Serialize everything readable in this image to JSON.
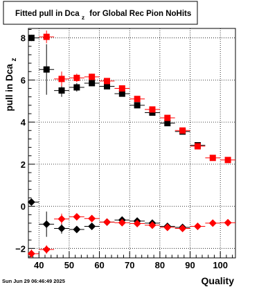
{
  "chart_data": {
    "type": "scatter",
    "title": "Fitted pull in Dca",
    "title_subscript": "z",
    "title_suffix": "for Global Rec Pion NoHits",
    "xlabel": "Quality",
    "ylabel": "pull in Dca",
    "ylabel_subscript": "z",
    "timestamp": "Sun Jun 29 06:46:49 2025",
    "xlim": [
      36.5,
      105
    ],
    "ylim": [
      -2.45,
      8.45
    ],
    "x_ticks": [
      40,
      50,
      60,
      70,
      80,
      90,
      100
    ],
    "y_ticks": [
      -2,
      0,
      2,
      4,
      6,
      8
    ],
    "grid": true,
    "series": [
      {
        "color": "#000000",
        "marker": "square",
        "points": [
          {
            "x": 37.5,
            "y": 8.0,
            "xerr": 2.5,
            "yerr": 0.15
          },
          {
            "x": 42.5,
            "y": 6.5,
            "xerr": 2.5,
            "yerr": 1.2
          },
          {
            "x": 47.5,
            "y": 5.5,
            "xerr": 2.5,
            "yerr": 0.3
          },
          {
            "x": 52.5,
            "y": 5.65,
            "xerr": 2.5,
            "yerr": 0.2
          },
          {
            "x": 57.5,
            "y": 5.85,
            "xerr": 2.5,
            "yerr": 0.15
          },
          {
            "x": 62.5,
            "y": 5.7,
            "xerr": 2.5,
            "yerr": 0.1
          },
          {
            "x": 67.5,
            "y": 5.35,
            "xerr": 2.5,
            "yerr": 0.1
          },
          {
            "x": 72.5,
            "y": 4.8,
            "xerr": 2.5,
            "yerr": 0.1
          },
          {
            "x": 77.5,
            "y": 4.45,
            "xerr": 2.5,
            "yerr": 0.1
          },
          {
            "x": 82.5,
            "y": 3.95,
            "xerr": 2.5,
            "yerr": 0.1
          },
          {
            "x": 87.5,
            "y": 3.55,
            "xerr": 2.5,
            "yerr": 0.1
          },
          {
            "x": 92.5,
            "y": 2.9,
            "xerr": 2.5,
            "yerr": 0.1
          }
        ]
      },
      {
        "color": "#ff0000",
        "marker": "square",
        "points": [
          {
            "x": 42.5,
            "y": 8.05,
            "xerr": 2.5,
            "yerr": 0.3
          },
          {
            "x": 47.5,
            "y": 6.05,
            "xerr": 2.5,
            "yerr": 0.35
          },
          {
            "x": 52.5,
            "y": 6.1,
            "xerr": 2.5,
            "yerr": 0.2
          },
          {
            "x": 57.5,
            "y": 6.15,
            "xerr": 2.5,
            "yerr": 0.15
          },
          {
            "x": 62.5,
            "y": 5.95,
            "xerr": 2.5,
            "yerr": 0.1
          },
          {
            "x": 67.5,
            "y": 5.6,
            "xerr": 2.5,
            "yerr": 0.1
          },
          {
            "x": 72.5,
            "y": 5.1,
            "xerr": 2.5,
            "yerr": 0.1
          },
          {
            "x": 77.5,
            "y": 4.6,
            "xerr": 2.5,
            "yerr": 0.1
          },
          {
            "x": 82.5,
            "y": 4.2,
            "xerr": 2.5,
            "yerr": 0.1
          },
          {
            "x": 87.5,
            "y": 3.6,
            "xerr": 2.5,
            "yerr": 0.1
          },
          {
            "x": 92.5,
            "y": 2.85,
            "xerr": 2.5,
            "yerr": 0.1
          },
          {
            "x": 97.5,
            "y": 2.3,
            "xerr": 2.5,
            "yerr": 0.1
          },
          {
            "x": 102.5,
            "y": 2.2,
            "xerr": 2.5,
            "yerr": 0.1
          }
        ]
      },
      {
        "color": "#000000",
        "marker": "diamond",
        "points": [
          {
            "x": 37.5,
            "y": 0.2,
            "xerr": 2.5,
            "yerr": 0.15
          },
          {
            "x": 42.5,
            "y": -0.85,
            "xerr": 2.5,
            "yerr": 0.6
          },
          {
            "x": 47.5,
            "y": -1.05,
            "xerr": 2.5,
            "yerr": 0.25
          },
          {
            "x": 52.5,
            "y": -1.1,
            "xerr": 2.5,
            "yerr": 0.15
          },
          {
            "x": 57.5,
            "y": -0.95,
            "xerr": 2.5,
            "yerr": 0.1
          },
          {
            "x": 62.5,
            "y": -0.75,
            "xerr": 2.5,
            "yerr": 0.1
          },
          {
            "x": 67.5,
            "y": -0.65,
            "xerr": 2.5,
            "yerr": 0.1
          },
          {
            "x": 72.5,
            "y": -0.7,
            "xerr": 2.5,
            "yerr": 0.1
          },
          {
            "x": 77.5,
            "y": -0.8,
            "xerr": 2.5,
            "yerr": 0.1
          },
          {
            "x": 82.5,
            "y": -0.95,
            "xerr": 2.5,
            "yerr": 0.1
          },
          {
            "x": 87.5,
            "y": -1.0,
            "xerr": 2.5,
            "yerr": 0.1
          }
        ]
      },
      {
        "color": "#ff0000",
        "marker": "diamond",
        "points": [
          {
            "x": 37.5,
            "y": -2.25,
            "xerr": 2.5,
            "yerr": 0.2
          },
          {
            "x": 42.5,
            "y": -2.05,
            "xerr": 2.5,
            "yerr": 0.2
          },
          {
            "x": 47.5,
            "y": -0.6,
            "xerr": 2.5,
            "yerr": 0.25
          },
          {
            "x": 52.5,
            "y": -0.5,
            "xerr": 2.5,
            "yerr": 0.15
          },
          {
            "x": 57.5,
            "y": -0.58,
            "xerr": 2.5,
            "yerr": 0.1
          },
          {
            "x": 62.5,
            "y": -0.75,
            "xerr": 2.5,
            "yerr": 0.1
          },
          {
            "x": 67.5,
            "y": -0.78,
            "xerr": 2.5,
            "yerr": 0.1
          },
          {
            "x": 72.5,
            "y": -0.82,
            "xerr": 2.5,
            "yerr": 0.1
          },
          {
            "x": 77.5,
            "y": -0.9,
            "xerr": 2.5,
            "yerr": 0.1
          },
          {
            "x": 82.5,
            "y": -1.0,
            "xerr": 2.5,
            "yerr": 0.1
          },
          {
            "x": 87.5,
            "y": -1.05,
            "xerr": 2.5,
            "yerr": 0.1
          },
          {
            "x": 92.5,
            "y": -0.95,
            "xerr": 2.5,
            "yerr": 0.1
          },
          {
            "x": 97.5,
            "y": -0.8,
            "xerr": 2.5,
            "yerr": 0.1
          },
          {
            "x": 102.5,
            "y": -0.78,
            "xerr": 2.5,
            "yerr": 0.1
          }
        ]
      }
    ]
  }
}
